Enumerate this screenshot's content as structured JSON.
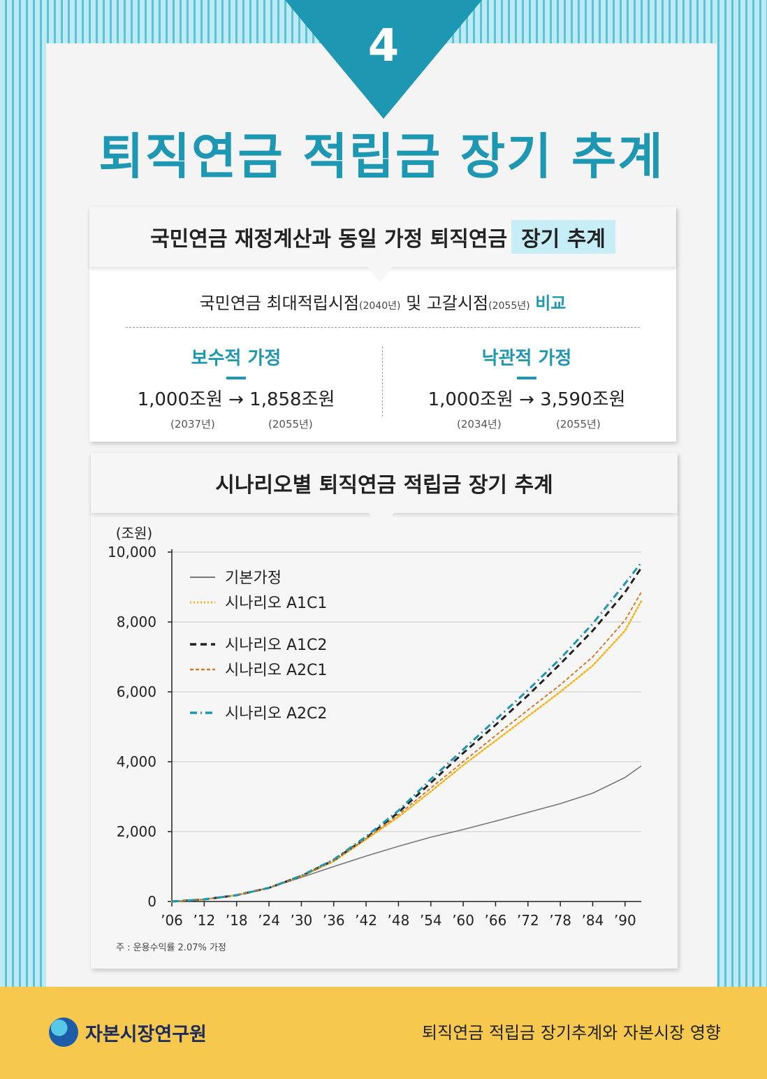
{
  "header": {
    "number": "4",
    "title": "퇴직연금 적립금 장기 추계"
  },
  "box1": {
    "title_main": "국민연금 재정계산과 동일 가정 퇴직연금",
    "title_highlight": "장기 추계",
    "compare": {
      "part1": "국민연금 최대적립시점",
      "year1": "(2040년)",
      "part2": "및 고갈시점",
      "year2": "(2055년)",
      "accent": "비교"
    },
    "conservative": {
      "title": "보수적 가정",
      "values": "1,000조원 → 1,858조원",
      "year_from": "(2037년)",
      "year_to": "(2055년)"
    },
    "optimistic": {
      "title": "낙관적 가정",
      "values": "1,000조원 → 3,590조원",
      "year_from": "(2034년)",
      "year_to": "(2055년)"
    }
  },
  "box2": {
    "title": "시나리오별 퇴직연금 적립금 장기 추계"
  },
  "chart_data": {
    "type": "line",
    "ylabel": "(조원)",
    "ylim": [
      0,
      10000
    ],
    "yticks": [
      "0",
      "2,000",
      "4,000",
      "6,000",
      "8,000",
      "10,000"
    ],
    "xticks": [
      "’06",
      "’12",
      "’18",
      "’24",
      "’30",
      "’36",
      "’42",
      "’48",
      "’54",
      "’60",
      "’66",
      "’72",
      "’78",
      "’84",
      "’90"
    ],
    "xlim": [
      2006,
      2093
    ],
    "grid": true,
    "legend_position": "top-left",
    "x": [
      2006,
      2012,
      2018,
      2024,
      2030,
      2036,
      2042,
      2048,
      2054,
      2060,
      2066,
      2072,
      2078,
      2084,
      2090,
      2093
    ],
    "series": [
      {
        "name": "기본가정",
        "color": "#777777",
        "dash": "solid",
        "values": [
          0,
          60,
          180,
          390,
          690,
          1000,
          1300,
          1580,
          1840,
          2060,
          2300,
          2550,
          2800,
          3100,
          3550,
          3880
        ]
      },
      {
        "name": "시나리오 A1C1",
        "color": "#f2b51d",
        "dash": "dotted",
        "values": [
          0,
          60,
          180,
          390,
          720,
          1150,
          1780,
          2420,
          3150,
          3900,
          4600,
          5300,
          6000,
          6750,
          7750,
          8600
        ]
      },
      {
        "name": "시나리오 A1C2",
        "color": "#222222",
        "dash": "dashed",
        "values": [
          0,
          60,
          180,
          390,
          730,
          1180,
          1820,
          2550,
          3400,
          4250,
          5050,
          5900,
          6800,
          7750,
          8850,
          9550
        ]
      },
      {
        "name": "시나리오 A2C1",
        "color": "#d07d2b",
        "dash": "shortdash",
        "values": [
          0,
          60,
          180,
          390,
          720,
          1170,
          1800,
          2480,
          3250,
          4000,
          4750,
          5480,
          6200,
          7000,
          8050,
          8850
        ]
      },
      {
        "name": "시나리오 A2C2",
        "color": "#1e97b3",
        "dash": "dashdot",
        "values": [
          0,
          60,
          180,
          390,
          740,
          1200,
          1860,
          2600,
          3500,
          4350,
          5200,
          6050,
          6950,
          7950,
          9100,
          9700
        ]
      }
    ],
    "note": "주 : 운용수익률 2.07% 가정"
  },
  "footer": {
    "org": "자본시장연구원",
    "subtitle": "퇴직연금 적립금 장기추계와 자본시장 영향"
  }
}
